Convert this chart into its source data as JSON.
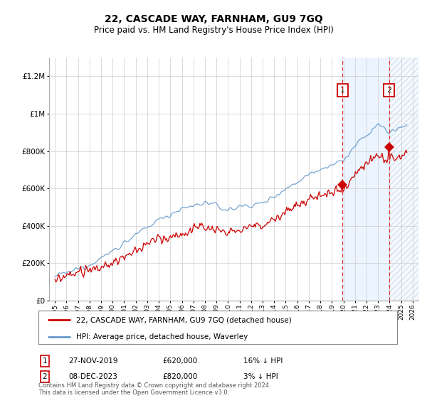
{
  "title": "22, CASCADE WAY, FARNHAM, GU9 7GQ",
  "subtitle": "Price paid vs. HM Land Registry's House Price Index (HPI)",
  "hpi_label": "HPI: Average price, detached house, Waverley",
  "price_label": "22, CASCADE WAY, FARNHAM, GU9 7GQ (detached house)",
  "legend_footnote": "Contains HM Land Registry data © Crown copyright and database right 2024.\nThis data is licensed under the Open Government Licence v3.0.",
  "transaction1_date": "27-NOV-2019",
  "transaction1_price": "£620,000",
  "transaction1_hpi": "16% ↓ HPI",
  "transaction2_date": "08-DEC-2023",
  "transaction2_price": "£820,000",
  "transaction2_hpi": "3% ↓ HPI",
  "ylim": [
    0,
    1300000
  ],
  "yticks": [
    0,
    200000,
    400000,
    600000,
    800000,
    1000000,
    1200000
  ],
  "ytick_labels": [
    "£0",
    "£200K",
    "£400K",
    "£600K",
    "£800K",
    "£1M",
    "£1.2M"
  ],
  "hpi_color": "#6699cc",
  "price_color": "#cc0000",
  "transaction1_x": 2019.92,
  "transaction2_x": 2023.95,
  "transaction1_y": 620000,
  "transaction2_y": 820000,
  "shade_color": "#ddeeff",
  "hatch_color": "#bbccdd",
  "xmin": 1994.5,
  "xmax": 2026.5,
  "seed": 12345
}
